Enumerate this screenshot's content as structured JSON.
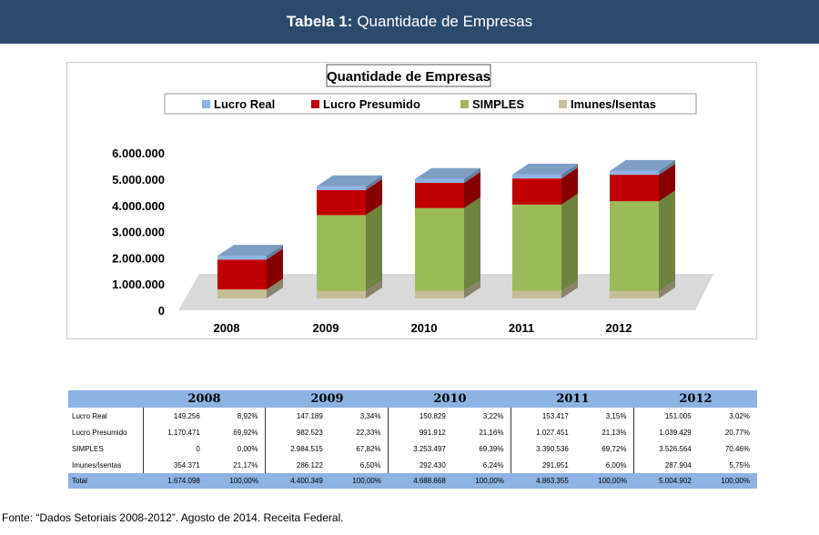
{
  "header": {
    "label": "Tabela 1:",
    "title": "Quantidade de Empresas"
  },
  "chart_data": {
    "type": "bar",
    "stacked": true,
    "title": "Quantidade de Empresas",
    "categories": [
      "2008",
      "2009",
      "2010",
      "2011",
      "2012"
    ],
    "series": [
      {
        "name": "Lucro Real",
        "color": "#8eb4e3",
        "values": [
          149256,
          147189,
          150829,
          153417,
          151005
        ]
      },
      {
        "name": "Lucro Presumido",
        "color": "#c00000",
        "values": [
          1170471,
          982523,
          991912,
          1027451,
          1039429
        ]
      },
      {
        "name": "SIMPLES",
        "color": "#9bbb59",
        "values": [
          0,
          2984515,
          3253497,
          3390536,
          3526564
        ]
      },
      {
        "name": "Imunes/Isentas",
        "color": "#c4bd97",
        "values": [
          354371,
          286122,
          292430,
          291951,
          287904
        ]
      }
    ],
    "stack_order": [
      "Imunes/Isentas",
      "SIMPLES",
      "Lucro Presumido",
      "Lucro Real"
    ],
    "yticks": [
      "0",
      "1.000.000",
      "2.000.000",
      "3.000.000",
      "4.000.000",
      "5.000.000",
      "6.000.000"
    ],
    "ylim": [
      0,
      6000000
    ],
    "legend": "top"
  },
  "table": {
    "years": [
      "2008",
      "2009",
      "2010",
      "2011",
      "2012"
    ],
    "rows": [
      {
        "label": "Lucro Real",
        "cells": [
          "149.256",
          "8,92%",
          "147.189",
          "3,34%",
          "150.829",
          "3,22%",
          "153.417",
          "3,15%",
          "151.005",
          "3,02%"
        ]
      },
      {
        "label": "Lucro Presumido",
        "cells": [
          "1.170.471",
          "69,92%",
          "982.523",
          "22,33%",
          "991.912",
          "21,16%",
          "1.027.451",
          "21,13%",
          "1.039.429",
          "20,77%"
        ]
      },
      {
        "label": "SIMPLES",
        "cells": [
          "0",
          "0,00%",
          "2.984.515",
          "67,82%",
          "3.253.497",
          "69,39%",
          "3.390.536",
          "69,72%",
          "3.526.564",
          "70,46%"
        ]
      },
      {
        "label": "Imunes/Isentas",
        "cells": [
          "354.371",
          "21,17%",
          "286.122",
          "6,50%",
          "292.430",
          "6,24%",
          "291.951",
          "6,00%",
          "287.904",
          "5,75%"
        ]
      }
    ],
    "total": {
      "label": "Total",
      "cells": [
        "1.674.098",
        "100,00%",
        "4.400.349",
        "100,00%",
        "4.688.668",
        "100,00%",
        "4.863.355",
        "100,00%",
        "5.004.902",
        "100,00%"
      ]
    }
  },
  "source": "Fonte: “Dados Setoriais 2008-2012”.  Agosto de 2014. Receita Federal."
}
